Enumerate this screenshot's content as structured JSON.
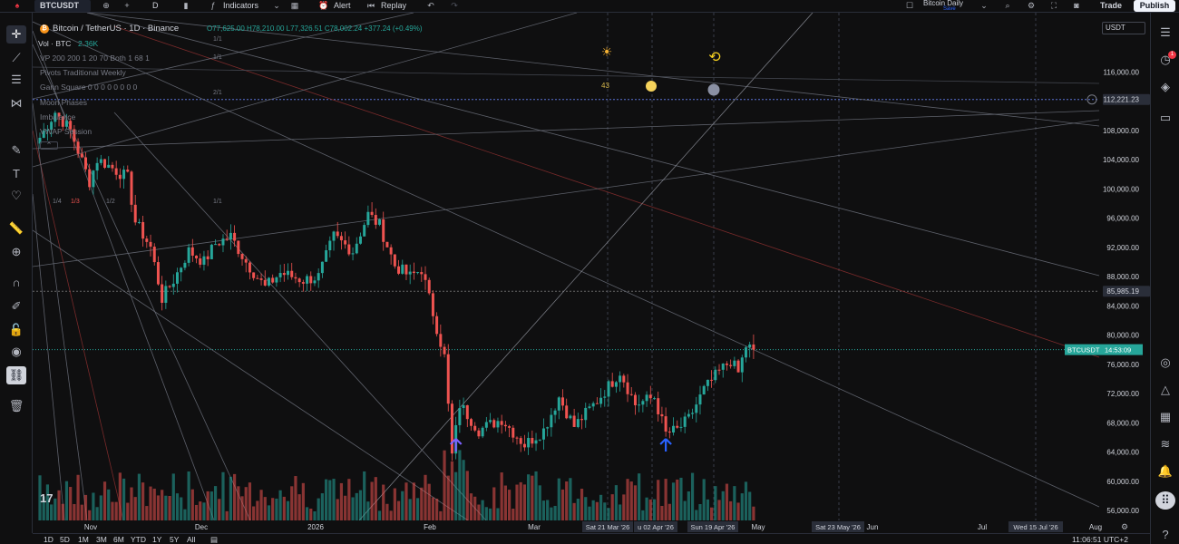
{
  "toolbar": {
    "symbol": "BTCUSDT",
    "interval": "D",
    "indicators_label": "Indicators",
    "alert_label": "Alert",
    "replay_label": "Replay",
    "layout_name": "Bitcoin Daily",
    "layout_status": "Save",
    "trade_label": "Trade",
    "publish_label": "Publish"
  },
  "legend": {
    "title": "Bitcoin / TetherUS · 1D · Binance",
    "ohlc": "O77,625.00 H78,210.00 L77,326.51 C78,002.24 +377.24 (+0.49%)",
    "vol_label": "Vol · BTC",
    "vol_value": "2.36K",
    "indicators": [
      "VP 200 200 1 20 70 Both 1 68 1",
      "Pivots Traditional Weekly",
      "Gann Square 0 0 0 0 0 0 0 0",
      "Moon Phases",
      "Imbalance",
      "VWAP Session"
    ]
  },
  "currency_select": "USDT",
  "gann_labels": {
    "top": [
      "1/1",
      "1/1",
      "2/1"
    ],
    "left": [
      "1/4",
      "1/3",
      "1/2",
      "1/1"
    ],
    "cycle_count": "43"
  },
  "bottom": {
    "ranges": [
      "1D",
      "5D",
      "1M",
      "3M",
      "6M",
      "YTD",
      "1Y",
      "5Y",
      "All"
    ],
    "clock": "11:06:51 UTC+2"
  },
  "colors": {
    "up": "#26a69a",
    "down": "#ef5350",
    "background": "#0f0f10",
    "price_tag": "#26a69a"
  },
  "icons": [
    "cursor-icon",
    "trendline-icon",
    "fib-icon",
    "pattern-icon",
    "brush-icon",
    "text-icon",
    "heart-icon",
    "ruler-icon",
    "zoom-icon",
    "magnet-icon",
    "lock-icon",
    "eye-icon",
    "link-icon",
    "trash-icon"
  ],
  "chart_data": {
    "type": "candlestick",
    "symbol": "BTCUSDT",
    "exchange": "Binance",
    "interval": "1D",
    "ylim": [
      54000,
      120000
    ],
    "y_ticks": [
      56000,
      60000,
      64000,
      68000,
      72000,
      76000,
      80000,
      84000,
      88000,
      92000,
      96000,
      100000,
      104000,
      108000,
      112000,
      116000
    ],
    "y_tick_labels": [
      "56,000.00",
      "60,000.00",
      "64,000.00",
      "68,000.00",
      "72,000.00",
      "76,000.00",
      "80,000.00",
      "84,000.00",
      "88,000.00",
      "92,000.00",
      "96,000.00",
      "100,000.00",
      "104,000.00",
      "108,000.00",
      "112,000.00",
      "116,000.00"
    ],
    "x_ticks": [
      "Nov",
      "Dec",
      "2026",
      "Feb",
      "Mar",
      "May",
      "Jun",
      "Jul",
      "Aug"
    ],
    "x_highlight_labels": [
      "Sat 21 Mar '26",
      "u 02 Apr '26",
      "Sun 19 Apr '26",
      "Sat 23 May '26",
      "Wed 15 Jul '26"
    ],
    "price_tags": [
      {
        "label": "112,221.23",
        "value": 112221.23
      },
      {
        "label": "85,985.19",
        "value": 85985.19
      },
      {
        "label": "BTCUSDT",
        "value": 78002.24,
        "countdown": "14:53:09"
      }
    ],
    "close_anchors": [
      {
        "date": "Oct 20 '25",
        "close": 107000
      },
      {
        "date": "Oct 24 '25",
        "close": 110500
      },
      {
        "date": "Oct 28 '25",
        "close": 108000
      },
      {
        "date": "Nov 02 '25",
        "close": 101000
      },
      {
        "date": "Nov 04 '25",
        "close": 104000
      },
      {
        "date": "Nov 06 '25",
        "close": 103500
      },
      {
        "date": "Nov 12 '25",
        "close": 101500
      },
      {
        "date": "Nov 14 '25",
        "close": 95500
      },
      {
        "date": "Nov 18 '25",
        "close": 92000
      },
      {
        "date": "Nov 21 '25",
        "close": 85000
      },
      {
        "date": "Nov 24 '25",
        "close": 87500
      },
      {
        "date": "Nov 28 '25",
        "close": 91500
      },
      {
        "date": "Dec 02 '25",
        "close": 90000
      },
      {
        "date": "Dec 05 '25",
        "close": 92500
      },
      {
        "date": "Dec 09 '25",
        "close": 93500
      },
      {
        "date": "Dec 13 '25",
        "close": 90000
      },
      {
        "date": "Dec 18 '25",
        "close": 86500
      },
      {
        "date": "Dec 22 '25",
        "close": 88500
      },
      {
        "date": "Dec 28 '25",
        "close": 87500
      },
      {
        "date": "Jan 01 '26",
        "close": 88000
      },
      {
        "date": "Jan 05 '26",
        "close": 93500
      },
      {
        "date": "Jan 10 '26",
        "close": 91500
      },
      {
        "date": "Jan 14 '26",
        "close": 96500
      },
      {
        "date": "Jan 17 '26",
        "close": 95000
      },
      {
        "date": "Jan 21 '26",
        "close": 89500
      },
      {
        "date": "Jan 25 '26",
        "close": 88000
      },
      {
        "date": "Jan 28 '26",
        "close": 89000
      },
      {
        "date": "Jan 31 '26",
        "close": 83000
      },
      {
        "date": "Feb 03 '26",
        "close": 77000
      },
      {
        "date": "Feb 05 '26",
        "close": 63500
      },
      {
        "date": "Feb 07 '26",
        "close": 70500
      },
      {
        "date": "Feb 12 '26",
        "close": 67000
      },
      {
        "date": "Feb 18 '26",
        "close": 68500
      },
      {
        "date": "Feb 24 '26",
        "close": 65000
      },
      {
        "date": "Mar 01 '26",
        "close": 67000
      },
      {
        "date": "Mar 05 '26",
        "close": 71500
      },
      {
        "date": "Mar 09 '26",
        "close": 67500
      },
      {
        "date": "Mar 15 '26",
        "close": 71000
      },
      {
        "date": "Mar 21 '26",
        "close": 75000
      },
      {
        "date": "Mar 25 '26",
        "close": 70500
      },
      {
        "date": "Mar 30 '26",
        "close": 71500
      },
      {
        "date": "Apr 02 '26",
        "close": 66500
      },
      {
        "date": "Apr 05 '26",
        "close": 67000
      },
      {
        "date": "Apr 08 '26",
        "close": 68500
      },
      {
        "date": "Apr 12 '26",
        "close": 72500
      },
      {
        "date": "Apr 16 '26",
        "close": 75000
      },
      {
        "date": "Apr 19 '26",
        "close": 76500
      },
      {
        "date": "Apr 21 '26",
        "close": 74800
      },
      {
        "date": "Apr 23 '26",
        "close": 78500
      },
      {
        "date": "Apr 25 '26",
        "close": 78000
      }
    ],
    "markers": [
      {
        "type": "up-arrow",
        "date": "Feb 06 '26",
        "color": "#7b61ff"
      },
      {
        "type": "up-arrow",
        "date": "Apr 02 '26",
        "color": "#2962ff"
      }
    ]
  }
}
